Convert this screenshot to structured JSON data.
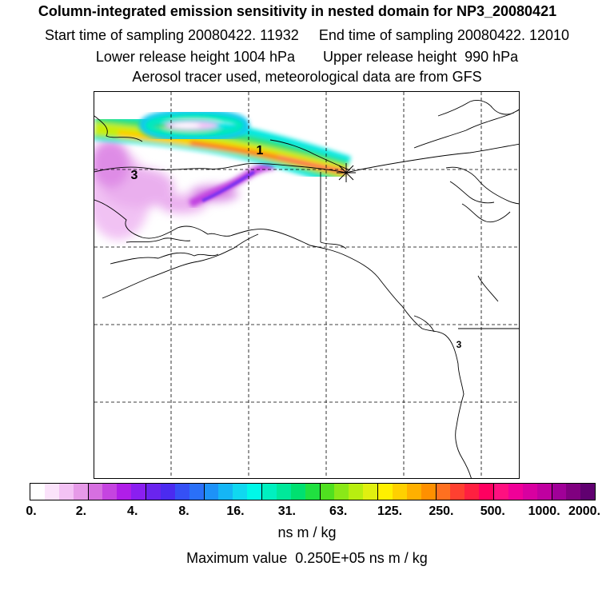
{
  "header": {
    "title": "Column-integrated emission sensitivity in nested domain for NP3_20080421",
    "sampling_line": "Start time of sampling 20080422. 11932     End time of sampling 20080422. 12010",
    "release_line": "Lower release height 1004 hPa       Upper release height  990 hPa",
    "tracer_line": "Aerosol tracer used, meteorological data are from GFS"
  },
  "map": {
    "labels": [
      {
        "id": "label-1",
        "text": "1"
      },
      {
        "id": "label-3-west",
        "text": "3"
      },
      {
        "id": "label-3-coast",
        "text": "3"
      }
    ],
    "release_marker": "star-marker"
  },
  "colorbar": {
    "tick_labels": [
      "0.",
      "2.",
      "4.",
      "8.",
      "16.",
      "31.",
      "63.",
      "125.",
      "250.",
      "500.",
      "1000.",
      "2000."
    ],
    "colors": [
      "#ffffff",
      "#fbe3fb",
      "#f3c2f4",
      "#e69ae8",
      "#d66fe0",
      "#c544e0",
      "#b01ee8",
      "#8a1ff0",
      "#6a24ee",
      "#4b2bf0",
      "#3550f5",
      "#2a70f8",
      "#1d92f8",
      "#15b6f5",
      "#10d8f0",
      "#00f8e8",
      "#00f0c0",
      "#00e89a",
      "#00e070",
      "#20e040",
      "#50e020",
      "#8ae818",
      "#b8ee10",
      "#e0f010",
      "#fff000",
      "#ffd000",
      "#ffb000",
      "#ff9000",
      "#ff7020",
      "#ff4030",
      "#ff2040",
      "#ff0060",
      "#ff1080",
      "#f00098",
      "#d800a0",
      "#c000a0",
      "#a00098",
      "#800080",
      "#600070"
    ],
    "units": "ns m / kg",
    "max_value_text": "Maximum value  0.250E+05 ns m / kg"
  }
}
